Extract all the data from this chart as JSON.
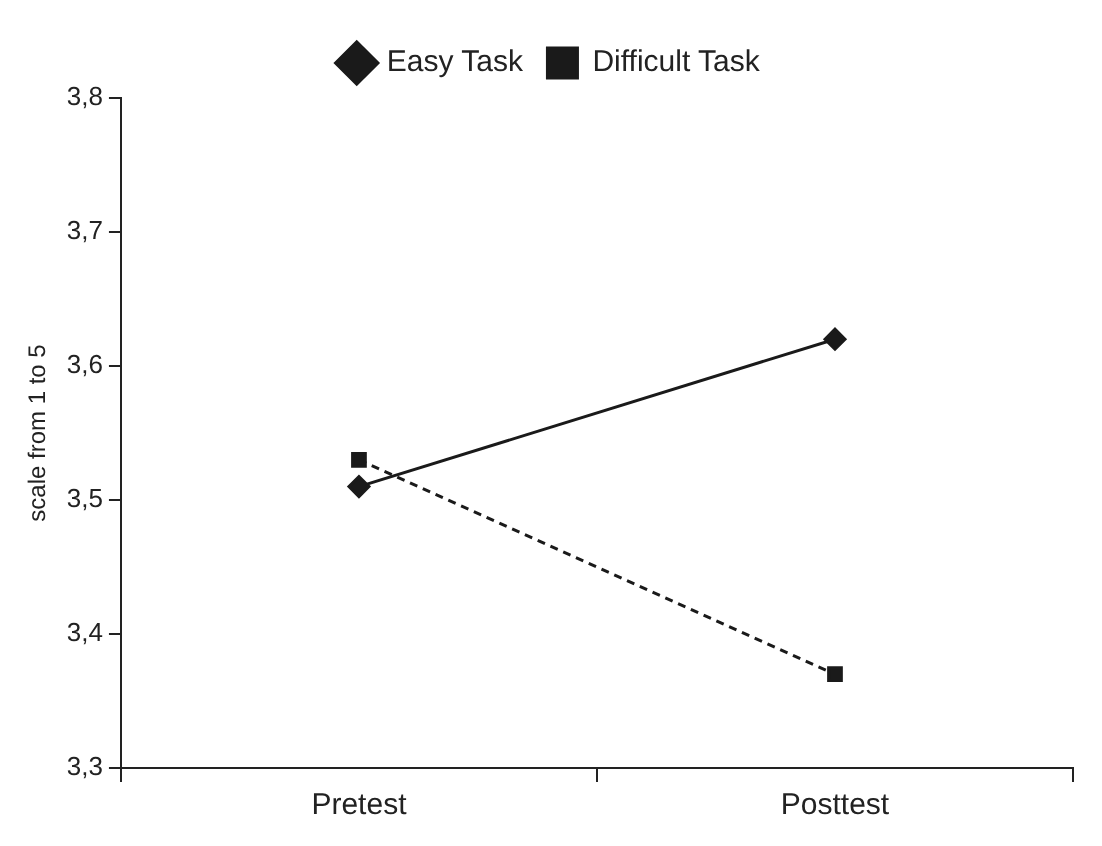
{
  "chart_data": {
    "type": "line",
    "ylabel": "scale from 1 to 5",
    "categories": [
      "Pretest",
      "Posttest"
    ],
    "series": [
      {
        "name": "Easy Task",
        "color": "#1a1a1a",
        "values": [
          3.51,
          3.62
        ],
        "marker": "diamond",
        "line_style": "solid"
      },
      {
        "name": "Difficult Task",
        "color": "#1a1a1a",
        "values": [
          3.53,
          3.37
        ],
        "marker": "square",
        "line_style": "dashed"
      }
    ],
    "ylim": [
      3.3,
      3.8
    ],
    "yticks": [
      {
        "value": 3.3,
        "label": "3,3"
      },
      {
        "value": 3.4,
        "label": "3,4"
      },
      {
        "value": 3.5,
        "label": "3,5"
      },
      {
        "value": 3.6,
        "label": "3,6"
      },
      {
        "value": 3.7,
        "label": "3,7"
      },
      {
        "value": 3.8,
        "label": "3,8"
      }
    ],
    "grid": false,
    "legend": "top"
  }
}
